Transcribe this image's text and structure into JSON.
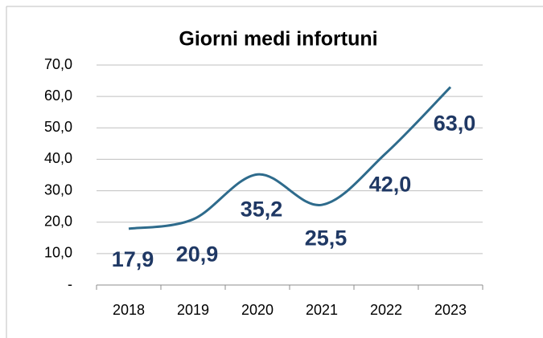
{
  "chart_data": {
    "type": "line",
    "title": "Giorni medi infortuni",
    "categories": [
      "2018",
      "2019",
      "2020",
      "2021",
      "2022",
      "2023"
    ],
    "series": [
      {
        "name": "Giorni medi infortuni",
        "color": "#2e6b8c",
        "values": [
          17.9,
          20.9,
          35.2,
          25.5,
          42.0,
          63.0
        ],
        "value_labels": [
          "17,9",
          "20,9",
          "35,2",
          "25,5",
          "42,0",
          "63,0"
        ]
      }
    ],
    "ylim": [
      0,
      70
    ],
    "yticks": [
      {
        "value": 0,
        "label": "-"
      },
      {
        "value": 10,
        "label": "10,0"
      },
      {
        "value": 20,
        "label": "20,0"
      },
      {
        "value": 30,
        "label": "30,0"
      },
      {
        "value": 40,
        "label": "40,0"
      },
      {
        "value": 50,
        "label": "50,0"
      },
      {
        "value": 60,
        "label": "60,0"
      },
      {
        "value": 70,
        "label": "70,0"
      }
    ],
    "grid": true,
    "smooth": true
  }
}
